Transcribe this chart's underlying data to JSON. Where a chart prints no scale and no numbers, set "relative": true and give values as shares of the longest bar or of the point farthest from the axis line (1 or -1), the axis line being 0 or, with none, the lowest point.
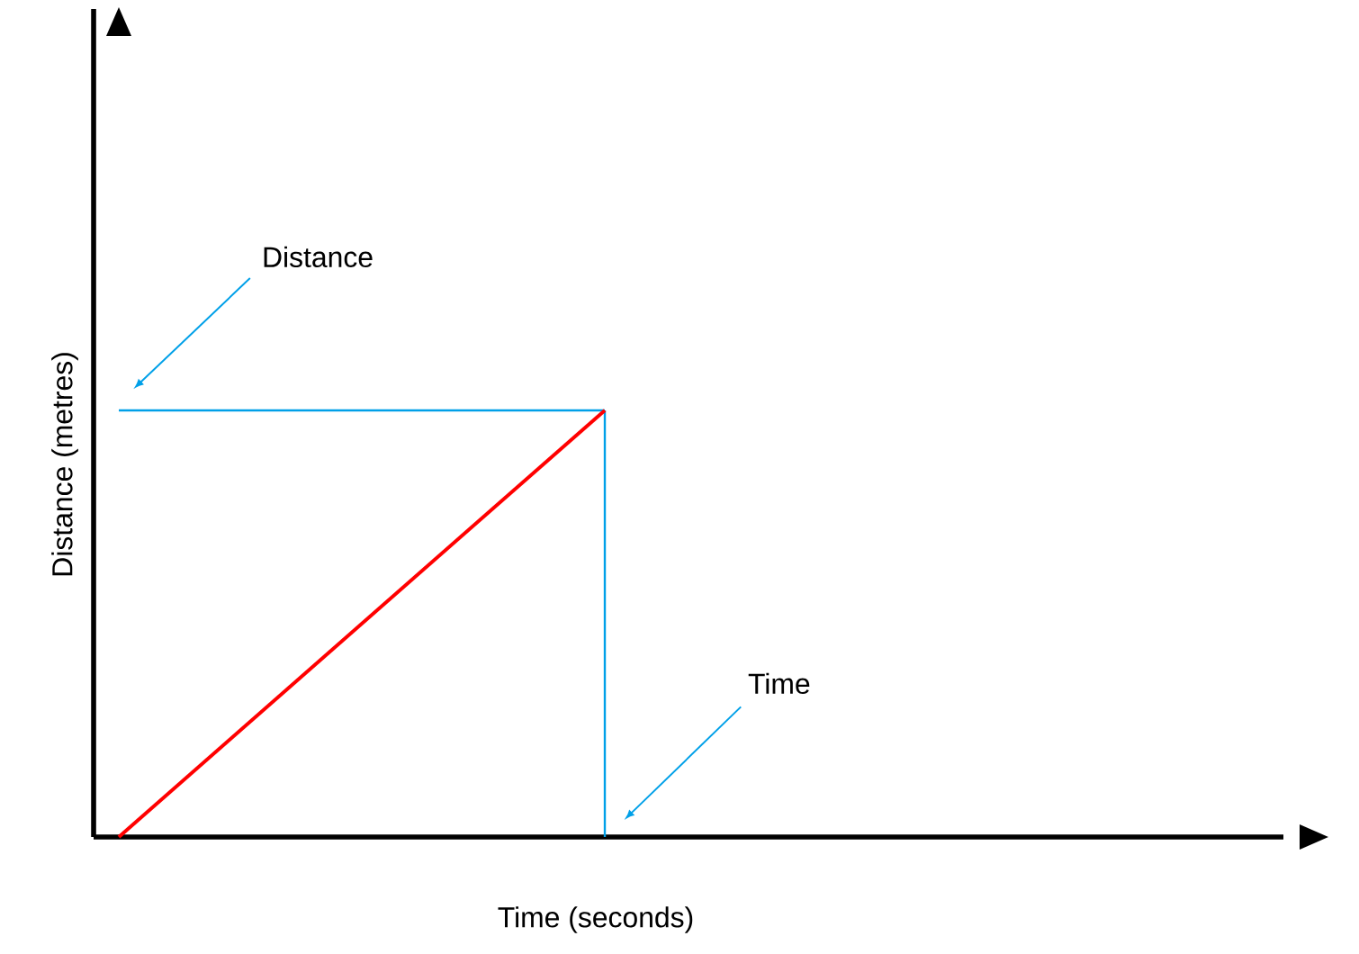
{
  "chart_data": {
    "type": "line",
    "xlabel": "Time (seconds)",
    "ylabel": "Distance (metres)",
    "categories": [
      null,
      null
    ],
    "values": [
      0,
      1
    ],
    "color": "#ff0000",
    "relative": true,
    "ref_lines": [
      {
        "axis": "y",
        "value": 1,
        "color": "#00a0e8"
      }
    ],
    "annotations": [
      "Distance",
      "Time"
    ]
  }
}
